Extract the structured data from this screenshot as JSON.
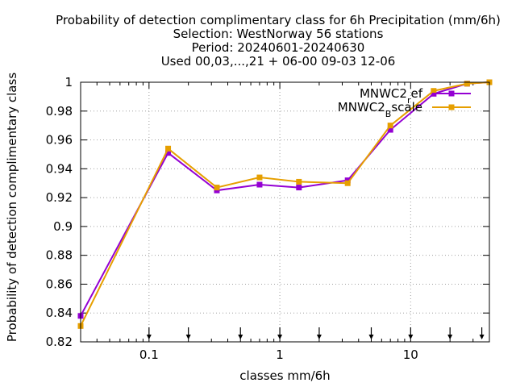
{
  "chart_data": {
    "type": "line",
    "title_lines": [
      "Probability of detection complimentary class  for 6h Precipitation (mm/6h)",
      "Selection: WestNorway     56 stations",
      "Period: 20240601-20240630",
      "Used 00,03,...,21 + 06-00 09-03 12-06"
    ],
    "xlabel": "classes mm/6h",
    "ylabel": "Probability of detection complimentary class",
    "xscale": "log",
    "xlim": [
      0.03,
      40
    ],
    "ylim": [
      0.82,
      1.0
    ],
    "x_ticks": [
      {
        "value": 0.1,
        "label": "0.1"
      },
      {
        "value": 1,
        "label": "1"
      },
      {
        "value": 10,
        "label": "10"
      }
    ],
    "y_ticks": [
      {
        "value": 0.82,
        "label": "0.82"
      },
      {
        "value": 0.84,
        "label": "0.84"
      },
      {
        "value": 0.86,
        "label": "0.86"
      },
      {
        "value": 0.88,
        "label": "0.88"
      },
      {
        "value": 0.9,
        "label": "0.9"
      },
      {
        "value": 0.92,
        "label": "0.92"
      },
      {
        "value": 0.94,
        "label": "0.94"
      },
      {
        "value": 0.96,
        "label": "0.96"
      },
      {
        "value": 0.98,
        "label": "0.98"
      },
      {
        "value": 1.0,
        "label": "1"
      }
    ],
    "grid": true,
    "legend_position": "top-right",
    "threshold_markers": [
      0.1,
      0.2,
      0.5,
      1,
      2,
      5,
      10,
      20,
      35
    ],
    "series": [
      {
        "name": "MNWC2_ref",
        "name_main": "MNWC2",
        "name_sub": "r",
        "name_rest": "ef",
        "color": "#9400d3",
        "x": [
          0.03,
          0.14,
          0.33,
          0.7,
          1.4,
          3.3,
          7,
          15,
          27,
          40
        ],
        "y": [
          0.838,
          0.951,
          0.925,
          0.929,
          0.927,
          0.932,
          0.967,
          0.992,
          0.999,
          1.0
        ]
      },
      {
        "name": "MNWC2_Bscale",
        "name_main": "MNWC2",
        "name_sub": "B",
        "name_rest": "scale",
        "color": "#e69f00",
        "x": [
          0.03,
          0.14,
          0.33,
          0.7,
          1.4,
          3.3,
          7,
          15,
          27,
          40
        ],
        "y": [
          0.831,
          0.954,
          0.927,
          0.934,
          0.931,
          0.93,
          0.97,
          0.994,
          0.999,
          1.0
        ]
      }
    ]
  }
}
